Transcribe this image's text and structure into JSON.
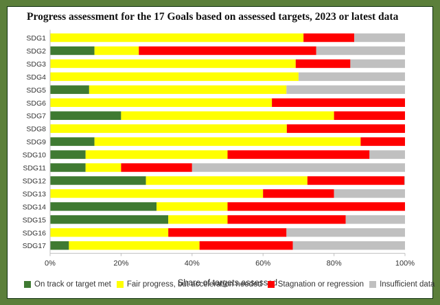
{
  "chart_data": {
    "type": "bar",
    "orientation": "horizontal",
    "stacked": true,
    "title": "Progress assessment for the 17 Goals based on assessed targets, 2023 or latest data",
    "xlabel": "Share of targets assessed",
    "ylabel": "",
    "xlim": [
      0,
      100
    ],
    "x_ticks": [
      "0%",
      "20%",
      "40%",
      "60%",
      "80%",
      "100%"
    ],
    "categories": [
      "SDG1",
      "SDG2",
      "SDG3",
      "SDG4",
      "SDG5",
      "SDG6",
      "SDG7",
      "SDG8",
      "SDG9",
      "SDG10",
      "SDG11",
      "SDG12",
      "SDG13",
      "SDG14",
      "SDG15",
      "SDG16",
      "SDG17"
    ],
    "series": [
      {
        "name": "On track or target met",
        "color": "#3f7a32",
        "values": [
          0,
          12.5,
          0,
          0,
          11,
          0,
          20,
          0,
          12.5,
          10,
          10,
          27,
          0,
          30,
          33.3,
          0,
          5.3
        ]
      },
      {
        "name": "Fair progress, but acceleration needed",
        "color": "#ffff00",
        "values": [
          71.4,
          12.5,
          69.2,
          70,
          55.6,
          62.5,
          60,
          66.7,
          75,
          40,
          10,
          45.5,
          60,
          20,
          16.7,
          33.3,
          36.8
        ]
      },
      {
        "name": "Stagnation or regression",
        "color": "#ff0000",
        "values": [
          14.3,
          50,
          15.4,
          0,
          0,
          37.5,
          20,
          33.3,
          12.5,
          40,
          20,
          27.3,
          20,
          50,
          33.3,
          33.3,
          26.3
        ]
      },
      {
        "name": "Insufficient data",
        "color": "#c0c0c0",
        "values": [
          14.3,
          25,
          15.4,
          30,
          33.4,
          0,
          0,
          0,
          0,
          10,
          60,
          0.2,
          20,
          0,
          16.7,
          33.4,
          31.6
        ]
      }
    ],
    "grid": false,
    "legend_position": "bottom"
  }
}
